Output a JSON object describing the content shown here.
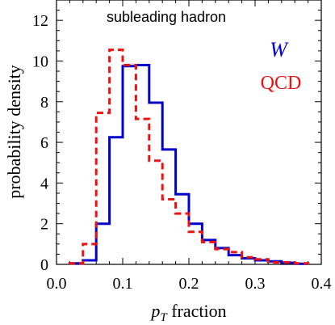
{
  "chart_data": {
    "type": "step-histogram",
    "annotation": "subleading hadron",
    "xlabel_main": "p",
    "xlabel_sub": "T",
    "xlabel_rest": " fraction",
    "ylabel": "probability density",
    "xlim": [
      0.0,
      0.4
    ],
    "ylim": [
      0,
      13
    ],
    "xticks": [
      0.0,
      0.1,
      0.2,
      0.3,
      0.4
    ],
    "yticks": [
      0,
      2,
      4,
      6,
      8,
      10,
      12
    ],
    "bin_edges": [
      0.02,
      0.04,
      0.06,
      0.08,
      0.1,
      0.12,
      0.14,
      0.16,
      0.18,
      0.2,
      0.22,
      0.24,
      0.26,
      0.28,
      0.3,
      0.32,
      0.34,
      0.36,
      0.38
    ],
    "series": [
      {
        "name": "W",
        "color": "#0000cc",
        "dash": "solid",
        "values": [
          0.05,
          0.2,
          2.0,
          6.25,
          9.75,
          9.8,
          7.95,
          5.65,
          3.45,
          2.0,
          1.2,
          0.8,
          0.45,
          0.3,
          0.2,
          0.15,
          0.08,
          0.03
        ]
      },
      {
        "name": "QCD",
        "color": "#ee1111",
        "dash": "dashed",
        "values": [
          0.05,
          1.0,
          7.45,
          10.55,
          9.8,
          7.15,
          5.1,
          3.2,
          2.5,
          1.6,
          1.1,
          0.75,
          0.6,
          0.35,
          0.25,
          0.1,
          0.1,
          0.05
        ]
      }
    ]
  }
}
